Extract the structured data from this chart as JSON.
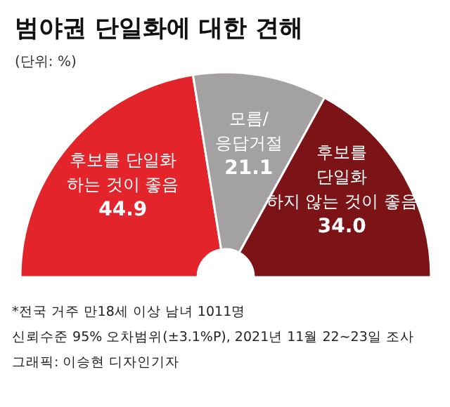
{
  "chart_data": {
    "type": "donut",
    "title": "범야권 단일화에 대한 견해",
    "subtitle": "(단위: %)",
    "categories": [
      "후보를 단일화\n하는 것이 좋음",
      "모름/\n응답거절",
      "후보를\n단일화\n하지 않는 것이 좋음"
    ],
    "values": [
      44.9,
      21.1,
      34.0
    ],
    "colors": [
      "#e3242b",
      "#a3a1a1",
      "#7b1317"
    ],
    "value_labels": [
      "44.9",
      "21.1",
      "34.0"
    ],
    "annotations": [
      "*전국 거주 만18세 이상 남녀 1011명",
      "신뢰수준 95% 오차범위(±3.1%P), 2021년 11월 22~23일 조사",
      "그래픽: 이승현 디자인기자"
    ]
  }
}
